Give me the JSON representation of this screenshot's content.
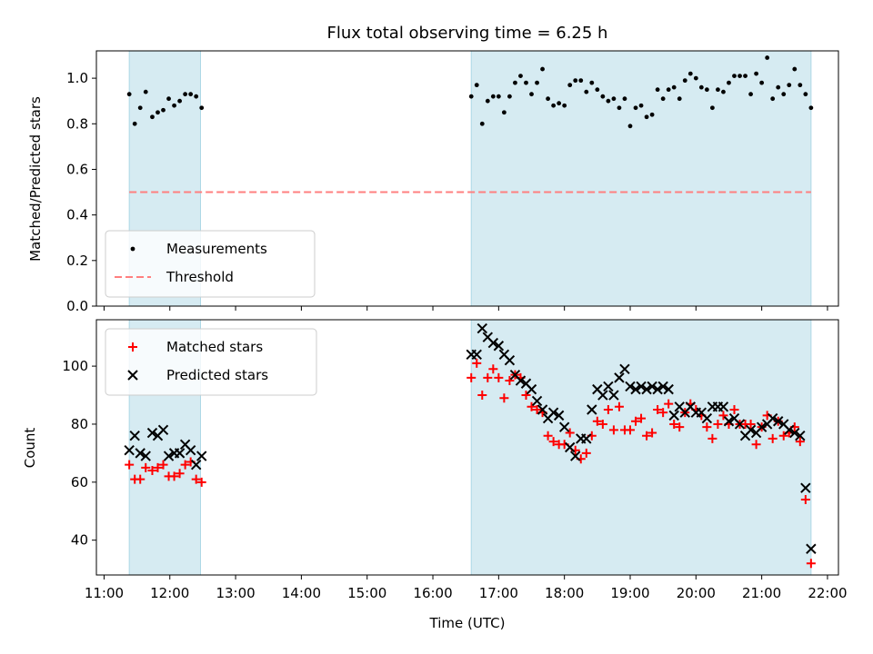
{
  "title": "Flux total observing time = 6.25 h",
  "chart_data": [
    {
      "type": "scatter",
      "ylabel": "Matched/Predicted stars",
      "ylim": [
        0,
        1.12
      ],
      "yticks": [
        0.0,
        0.2,
        0.4,
        0.6,
        0.8,
        1.0
      ],
      "yticklabels": [
        "0.0",
        "0.2",
        "0.4",
        "0.6",
        "0.8",
        "1.0"
      ],
      "legend_position": "lower-left",
      "shaded_x_ranges": [
        [
          "11:23",
          "12:28"
        ],
        [
          "16:35",
          "21:45"
        ]
      ],
      "threshold": {
        "name": "Threshold",
        "value": 0.5,
        "x_range": [
          "11:23",
          "21:45"
        ],
        "color": "#ff7f7f",
        "style": "dashed"
      },
      "series": [
        {
          "name": "Measurements",
          "marker": "dot",
          "color": "#000000",
          "x": [
            "11:23",
            "11:28",
            "11:33",
            "11:38",
            "11:44",
            "11:49",
            "11:54",
            "11:59",
            "12:04",
            "12:09",
            "12:14",
            "12:19",
            "12:24",
            "12:29",
            "16:35",
            "16:40",
            "16:45",
            "16:50",
            "16:55",
            "17:00",
            "17:05",
            "17:10",
            "17:15",
            "17:20",
            "17:25",
            "17:30",
            "17:35",
            "17:40",
            "17:45",
            "17:50",
            "17:55",
            "18:00",
            "18:05",
            "18:10",
            "18:15",
            "18:20",
            "18:25",
            "18:30",
            "18:35",
            "18:40",
            "18:45",
            "18:50",
            "18:55",
            "19:00",
            "19:05",
            "19:10",
            "19:15",
            "19:20",
            "19:25",
            "19:30",
            "19:35",
            "19:40",
            "19:45",
            "19:50",
            "19:55",
            "20:00",
            "20:05",
            "20:10",
            "20:15",
            "20:20",
            "20:25",
            "20:30",
            "20:35",
            "20:40",
            "20:45",
            "20:50",
            "20:55",
            "21:00",
            "21:05",
            "21:10",
            "21:15",
            "21:20",
            "21:25",
            "21:30",
            "21:35",
            "21:40",
            "21:45"
          ],
          "y": [
            0.93,
            0.8,
            0.87,
            0.94,
            0.83,
            0.85,
            0.86,
            0.91,
            0.88,
            0.9,
            0.93,
            0.93,
            0.92,
            0.87,
            0.92,
            0.97,
            0.8,
            0.9,
            0.92,
            0.92,
            0.85,
            0.92,
            0.98,
            1.01,
            0.98,
            0.93,
            0.98,
            1.04,
            0.91,
            0.88,
            0.89,
            0.88,
            0.97,
            0.99,
            0.99,
            0.94,
            0.98,
            0.95,
            0.92,
            0.9,
            0.91,
            0.87,
            0.91,
            0.79,
            0.87,
            0.88,
            0.83,
            0.84,
            0.95,
            0.91,
            0.95,
            0.96,
            0.91,
            0.99,
            1.02,
            1.0,
            0.96,
            0.95,
            0.87,
            0.95,
            0.94,
            0.98,
            1.01,
            1.01,
            1.01,
            0.93,
            1.02,
            0.98,
            1.09,
            0.91,
            0.96,
            0.93,
            0.97,
            1.04,
            0.97,
            0.93,
            0.87
          ]
        }
      ]
    },
    {
      "type": "scatter",
      "xlabel": "Time (UTC)",
      "ylabel": "Count",
      "ylim": [
        28,
        116
      ],
      "yticks": [
        40,
        60,
        80,
        100
      ],
      "yticklabels": [
        "40",
        "60",
        "80",
        "100"
      ],
      "xticklabels": [
        "11:00",
        "12:00",
        "13:00",
        "14:00",
        "15:00",
        "16:00",
        "17:00",
        "18:00",
        "19:00",
        "20:00",
        "21:00",
        "22:00"
      ],
      "legend_position": "upper-left",
      "shaded_x_ranges": [
        [
          "11:23",
          "12:28"
        ],
        [
          "16:35",
          "21:45"
        ]
      ],
      "series": [
        {
          "name": "Matched stars",
          "marker": "plus",
          "color": "#ff0000",
          "x": [
            "11:23",
            "11:28",
            "11:33",
            "11:38",
            "11:44",
            "11:49",
            "11:54",
            "11:59",
            "12:04",
            "12:09",
            "12:14",
            "12:19",
            "12:24",
            "12:29",
            "16:35",
            "16:40",
            "16:45",
            "16:50",
            "16:55",
            "17:00",
            "17:05",
            "17:10",
            "17:15",
            "17:20",
            "17:25",
            "17:30",
            "17:35",
            "17:40",
            "17:45",
            "17:50",
            "17:55",
            "18:00",
            "18:05",
            "18:10",
            "18:15",
            "18:20",
            "18:25",
            "18:30",
            "18:35",
            "18:40",
            "18:45",
            "18:50",
            "18:55",
            "19:00",
            "19:05",
            "19:10",
            "19:15",
            "19:20",
            "19:25",
            "19:30",
            "19:35",
            "19:40",
            "19:45",
            "19:50",
            "19:55",
            "20:00",
            "20:05",
            "20:10",
            "20:15",
            "20:20",
            "20:25",
            "20:30",
            "20:35",
            "20:40",
            "20:45",
            "20:50",
            "20:55",
            "21:00",
            "21:05",
            "21:10",
            "21:15",
            "21:20",
            "21:25",
            "21:30",
            "21:35",
            "21:40",
            "21:45"
          ],
          "y": [
            66,
            61,
            61,
            65,
            64,
            65,
            66,
            62,
            62,
            63,
            66,
            67,
            61,
            60,
            96,
            101,
            90,
            96,
            99,
            96,
            89,
            95,
            97,
            96,
            90,
            86,
            85,
            84,
            76,
            74,
            73,
            73,
            77,
            71,
            68,
            70,
            76,
            81,
            80,
            85,
            78,
            86,
            78,
            78,
            81,
            82,
            76,
            77,
            85,
            84,
            87,
            80,
            79,
            84,
            87,
            85,
            83,
            79,
            75,
            80,
            83,
            80,
            85,
            80,
            80,
            80,
            73,
            79,
            83,
            75,
            81,
            76,
            77,
            79,
            74,
            54,
            32
          ]
        },
        {
          "name": "Predicted stars",
          "marker": "x",
          "color": "#000000",
          "x": [
            "11:23",
            "11:28",
            "11:33",
            "11:38",
            "11:44",
            "11:49",
            "11:54",
            "11:59",
            "12:04",
            "12:09",
            "12:14",
            "12:19",
            "12:24",
            "12:29",
            "16:35",
            "16:40",
            "16:45",
            "16:50",
            "16:55",
            "17:00",
            "17:05",
            "17:10",
            "17:15",
            "17:20",
            "17:25",
            "17:30",
            "17:35",
            "17:40",
            "17:45",
            "17:50",
            "17:55",
            "18:00",
            "18:05",
            "18:10",
            "18:15",
            "18:20",
            "18:25",
            "18:30",
            "18:35",
            "18:40",
            "18:45",
            "18:50",
            "18:55",
            "19:00",
            "19:05",
            "19:10",
            "19:15",
            "19:20",
            "19:25",
            "19:30",
            "19:35",
            "19:40",
            "19:45",
            "19:50",
            "19:55",
            "20:00",
            "20:05",
            "20:10",
            "20:15",
            "20:20",
            "20:25",
            "20:30",
            "20:35",
            "20:40",
            "20:45",
            "20:50",
            "20:55",
            "21:00",
            "21:05",
            "21:10",
            "21:15",
            "21:20",
            "21:25",
            "21:30",
            "21:35",
            "21:40",
            "21:45"
          ],
          "y": [
            71,
            76,
            70,
            69,
            77,
            76,
            78,
            69,
            70,
            70,
            73,
            71,
            66,
            69,
            104,
            104,
            113,
            110,
            108,
            107,
            104,
            102,
            97,
            95,
            94,
            92,
            88,
            85,
            82,
            84,
            83,
            79,
            72,
            69,
            75,
            75,
            85,
            92,
            90,
            93,
            90,
            96,
            99,
            93,
            92,
            93,
            92,
            93,
            92,
            93,
            92,
            83,
            86,
            84,
            86,
            84,
            84,
            82,
            86,
            86,
            86,
            81,
            82,
            80,
            76,
            78,
            77,
            79,
            80,
            82,
            81,
            80,
            78,
            77,
            76,
            58,
            37
          ]
        }
      ]
    }
  ]
}
